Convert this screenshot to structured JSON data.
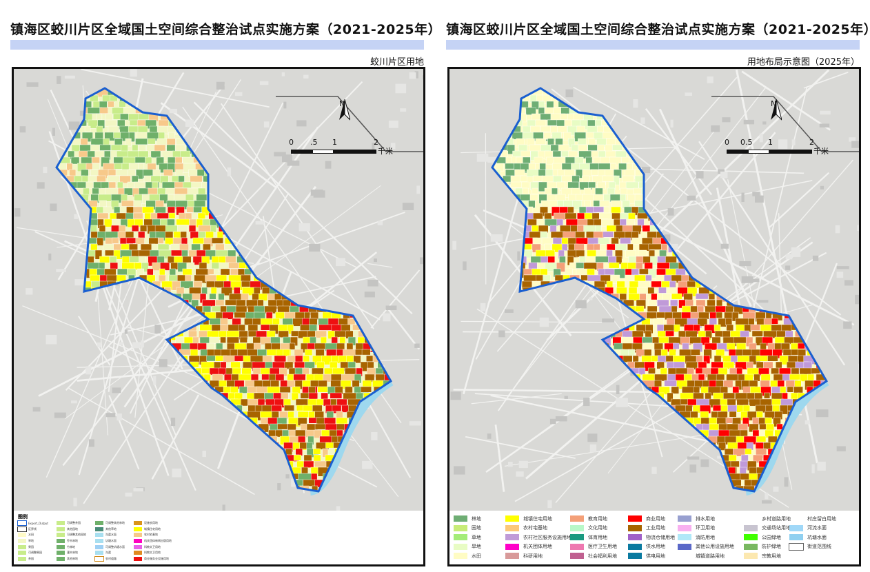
{
  "left": {
    "title": "镇海区蛟川片区全域国土空间综合整治试点实施方案（2021-2025年）",
    "subtitle": "蛟川片区用地",
    "north": "N",
    "scale": {
      "ticks": [
        "0",
        ".5",
        "1",
        "2"
      ],
      "unit": "千米"
    },
    "legend_title": "图例",
    "legend": [
      {
        "label": "Export_Output",
        "color": "#ffffff",
        "border": "#1a5fd0"
      },
      {
        "label": "区界线",
        "color": "#ffffff",
        "border": "#333333"
      },
      {
        "label": "水田",
        "color": "#fffbc8"
      },
      {
        "label": "旱地",
        "color": "#f3f7c4"
      },
      {
        "label": "果园",
        "color": "#c8ec8a"
      },
      {
        "label": "可调整果园",
        "color": "#c8ec8a"
      },
      {
        "label": "茶园",
        "color": "#c8ec8a"
      },
      {
        "label": "可调整茶园",
        "color": "#c8ec8a"
      },
      {
        "label": "其他园地",
        "color": "#c8ec8a"
      },
      {
        "label": "可调整其他园地",
        "color": "#c8ec8a"
      },
      {
        "label": "乔木林地",
        "color": "#6fb06a"
      },
      {
        "label": "竹林地",
        "color": "#6fb06a"
      },
      {
        "label": "灌木林地",
        "color": "#6fb06a"
      },
      {
        "label": "其他林地",
        "color": "#6fb06a"
      },
      {
        "label": "可调整其他林地",
        "color": "#6fb06a"
      },
      {
        "label": "其他草地",
        "color": "#4a8c78"
      },
      {
        "label": "沟渠水面",
        "color": "#a8dff0"
      },
      {
        "label": "坑塘水面",
        "color": "#a8dff0"
      },
      {
        "label": "可调整坑塘水面",
        "color": "#9ed0f4"
      },
      {
        "label": "沟渠",
        "color": "#a8dff0"
      },
      {
        "label": "农村道路",
        "color": "#ffffff",
        "border": "#d08a1a"
      },
      {
        "label": "设施农用地",
        "color": "#d9941a"
      },
      {
        "label": "城镇住宅用地",
        "color": "#ffff00"
      },
      {
        "label": "农村宅基地",
        "color": "#f7c98a"
      },
      {
        "label": "机关团体新闻出版用地",
        "color": "#ff00c0"
      },
      {
        "label": "科教文卫用地",
        "color": "#e860e8"
      },
      {
        "label": "科教文卫用地",
        "color": "#e08a20"
      },
      {
        "label": "商业服务业设施用地",
        "color": "#ee1010"
      }
    ]
  },
  "right": {
    "title": "镇海区蛟川片区全域国土空间综合整治试点实施方案（2021-2025年）",
    "subtitle": "用地布局示意图（2025年）",
    "north": "N",
    "scale": {
      "ticks": [
        "0",
        "0.5",
        "1",
        "2"
      ],
      "unit": "千米"
    },
    "legend": [
      {
        "label": "林地",
        "color": "#6fae74"
      },
      {
        "label": "园地",
        "color": "#c8ec78"
      },
      {
        "label": "草地",
        "color": "#a4ec78"
      },
      {
        "label": "旱地",
        "color": "#e8fcc4"
      },
      {
        "label": "水田",
        "color": "#fffcc4"
      },
      {
        "label": "城镇住宅用地",
        "color": "#ffff00"
      },
      {
        "label": "农村宅基地",
        "color": "#fcc878"
      },
      {
        "label": "农村社区服务设施用地",
        "color": "#c09ad8"
      },
      {
        "label": "机关团体用地",
        "color": "#ff00c8"
      },
      {
        "label": "科研用地",
        "color": "#d89a9a"
      },
      {
        "label": "教育用地",
        "color": "#f4a078"
      },
      {
        "label": "文化用地",
        "color": "#b8f8c8"
      },
      {
        "label": "体育用地",
        "color": "#1a9a80"
      },
      {
        "label": "医疗卫生用地",
        "color": "#ee78b0"
      },
      {
        "label": "社会福利用地",
        "color": "#c06090"
      },
      {
        "label": "商业用地",
        "color": "#ff0000"
      },
      {
        "label": "工业用地",
        "color": "#a86400"
      },
      {
        "label": "物流仓储用地",
        "color": "#a060c8"
      },
      {
        "label": "供水用地",
        "color": "#0a7aa0"
      },
      {
        "label": "供电用地",
        "color": "#0a7aa0"
      },
      {
        "label": "排水用地",
        "color": "#98a0d0"
      },
      {
        "label": "环卫用地",
        "color": "#f8b0f0"
      },
      {
        "label": "消防用地",
        "color": "#b0e8f8"
      },
      {
        "label": "其他公用设施用地",
        "color": "#5a68c8"
      },
      {
        "label": "城镇道路用地",
        "color": ""
      },
      {
        "label": "乡村道路用地",
        "color": ""
      },
      {
        "label": "交通场站用地",
        "color": "#c8c4d0"
      },
      {
        "label": "公园绿地",
        "color": "#40ff00"
      },
      {
        "label": "防护绿地",
        "color": "#78b860"
      },
      {
        "label": "宗教用地",
        "color": "#fce8b0"
      },
      {
        "label": "村庄留白用地",
        "color": ""
      },
      {
        "label": "河流水面",
        "color": "#a0d8f8"
      },
      {
        "label": "坑塘水面",
        "color": "#90d0f0"
      },
      {
        "label": "街道范围线",
        "color": "#ffffff",
        "border": "#666666"
      }
    ]
  },
  "colors": {
    "boundary": "#1a5fd0",
    "basemap": "#d9d9d6"
  }
}
